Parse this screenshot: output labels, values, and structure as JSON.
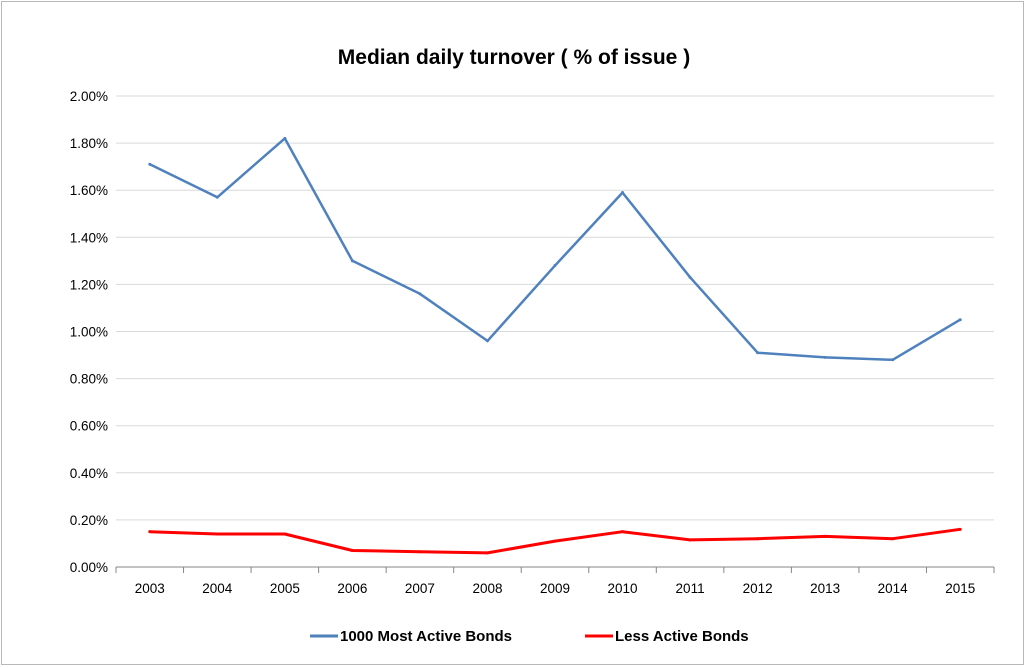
{
  "chart_data": {
    "type": "line",
    "title": "Median daily turnover ( % of issue )",
    "xlabel": "",
    "ylabel": "",
    "categories": [
      "2003",
      "2004",
      "2005",
      "2006",
      "2007",
      "2008",
      "2009",
      "2010",
      "2011",
      "2012",
      "2013",
      "2014",
      "2015"
    ],
    "ylim": [
      0,
      2.0
    ],
    "yticks": [
      "0.00%",
      "0.20%",
      "0.40%",
      "0.60%",
      "0.80%",
      "1.00%",
      "1.20%",
      "1.40%",
      "1.60%",
      "1.80%",
      "2.00%"
    ],
    "grid": true,
    "legend_position": "bottom",
    "series": [
      {
        "name": "1000 Most Active Bonds",
        "color": "#4f81bd",
        "values": [
          1.71,
          1.57,
          1.82,
          1.3,
          1.16,
          0.96,
          1.28,
          1.59,
          1.23,
          0.91,
          0.89,
          0.88,
          1.05
        ]
      },
      {
        "name": "Less Active Bonds",
        "color": "#ff0000",
        "values": [
          0.15,
          0.14,
          0.14,
          0.07,
          0.065,
          0.06,
          0.11,
          0.15,
          0.115,
          0.12,
          0.13,
          0.12,
          0.16
        ]
      }
    ]
  }
}
